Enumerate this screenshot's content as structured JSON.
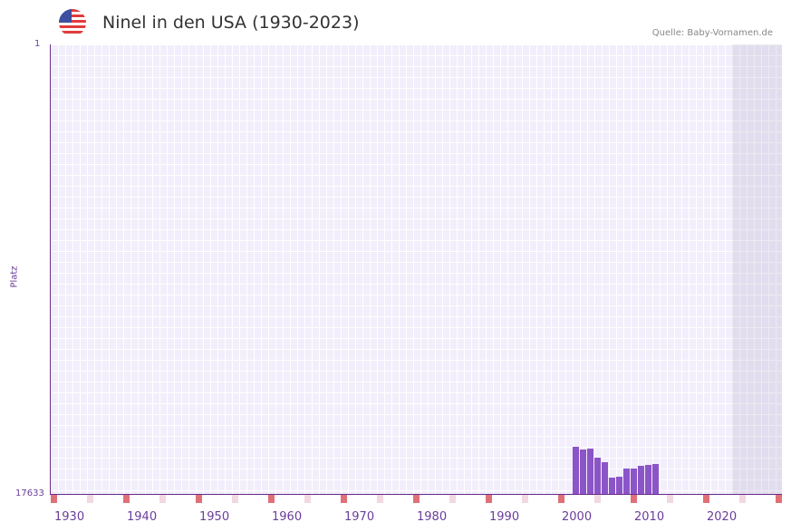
{
  "header": {
    "title": "Ninel in den USA (1930-2023)",
    "source": "Quelle: Baby-Vornamen.de",
    "flag_icon": "us-flag-icon"
  },
  "axis": {
    "y_top": "1",
    "y_bottom": "17633",
    "y_title": "Platz"
  },
  "colors": {
    "bar": "#8b55c8",
    "axis": "#6a2a8a",
    "marker_strong": "#e07078",
    "marker_light": "#f2d8e0"
  },
  "chart_data": {
    "type": "bar",
    "title": "Ninel in den USA (1930-2023)",
    "xlabel": "",
    "ylabel": "Platz",
    "ylim": [
      17633,
      1
    ],
    "x_ticks": [
      "1930",
      "1940",
      "1950",
      "1960",
      "1970",
      "1980",
      "1990",
      "2000",
      "2010",
      "2020"
    ],
    "categories": [
      "2000",
      "2001",
      "2002",
      "2003",
      "2004",
      "2005",
      "2006",
      "2007",
      "2008",
      "2009",
      "2010",
      "2011"
    ],
    "values": [
      15800,
      15900,
      15840,
      16200,
      16400,
      17000,
      16950,
      16650,
      16620,
      16530,
      16500,
      16450
    ],
    "grid": true,
    "legend": "none"
  }
}
